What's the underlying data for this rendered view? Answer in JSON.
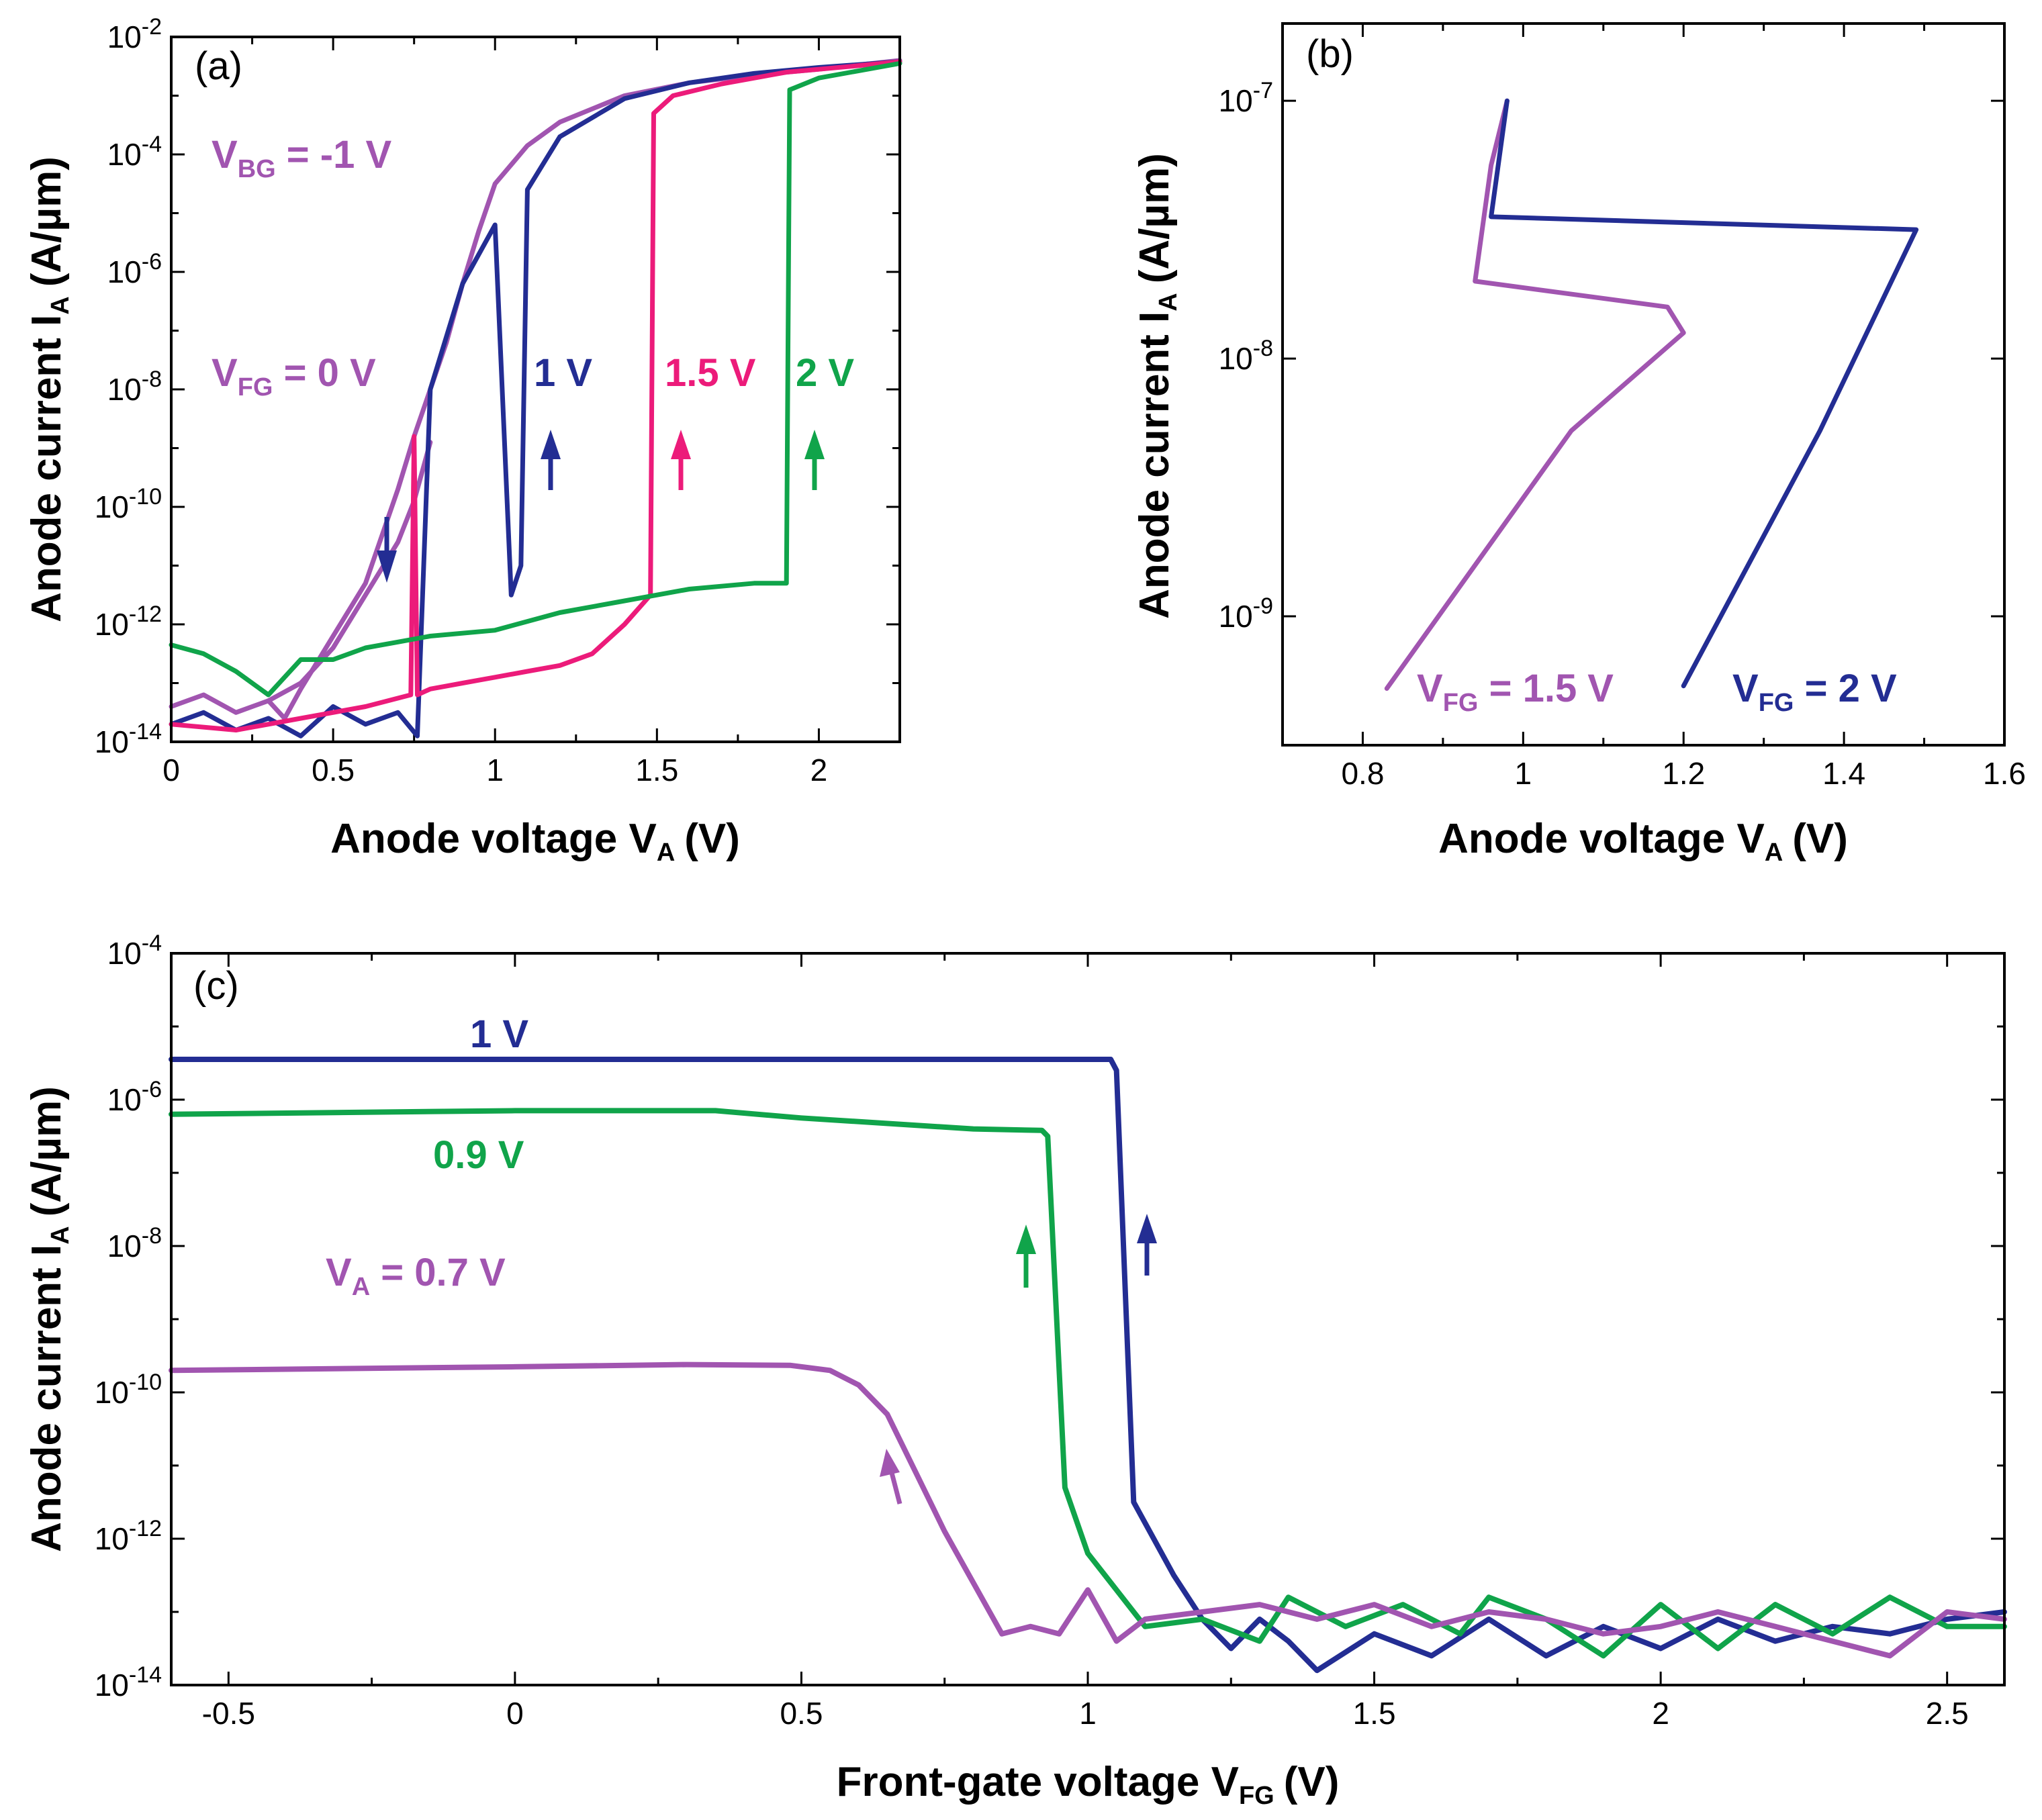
{
  "colors": {
    "purple": "#A155B0",
    "navy": "#232D93",
    "pink": "#EC1B7A",
    "green": "#10A44A"
  },
  "chart_data": [
    {
      "id": "a",
      "type": "line",
      "panel_label": "(a)",
      "xlabel": "Anode voltage V",
      "xlabel_sub": "A",
      "xlabel_unit": "(V)",
      "ylabel": "Anode current I",
      "ylabel_sub": "A",
      "ylabel_unit": "(A/µm)",
      "xlim": [
        0,
        2.25
      ],
      "ylim_log10": [
        -14,
        -2
      ],
      "yscale": "log",
      "xticks": [
        "0",
        "0.5",
        "1",
        "1.5",
        "2"
      ],
      "xtick_values": [
        0,
        0.5,
        1,
        1.5,
        2
      ],
      "ytick_exponents": [
        -14,
        -12,
        -10,
        -8,
        -6,
        -4,
        -2
      ],
      "ytick_base": "10",
      "ytick_labels": [
        "-14",
        "-12",
        "-10",
        "-8",
        "-6",
        "-4",
        "-2"
      ],
      "annotations": {
        "vbg_main": "V",
        "vbg_sub": "BG",
        "vbg_rest": " = -1 V",
        "vfg_main": "V",
        "vfg_sub": "FG",
        "vfg_rest": " = 0 V",
        "l1": "1 V",
        "l15": "1.5 V",
        "l2": "2 V"
      },
      "series": [
        {
          "name": "V_FG = 0 V (purple)",
          "color": "purple",
          "log10": true,
          "x": [
            0,
            0.1,
            0.2,
            0.3,
            0.35,
            0.4,
            0.5,
            0.6,
            0.7,
            0.75,
            0.8,
            0.85,
            0.9,
            0.95,
            1.0,
            1.1,
            1.2,
            1.4,
            1.6,
            1.8,
            2.0,
            2.25
          ],
          "y": [
            -13.4,
            -13.2,
            -13.5,
            -13.3,
            -13.6,
            -13.1,
            -12.2,
            -11.3,
            -9.7,
            -8.8,
            -8.0,
            -7.2,
            -6.2,
            -5.3,
            -4.5,
            -3.85,
            -3.45,
            -3.0,
            -2.78,
            -2.65,
            -2.55,
            -2.4
          ]
        },
        {
          "name": "V_FG = 0 V reverse (purple)",
          "color": "purple",
          "log10": true,
          "x": [
            0.3,
            0.4,
            0.5,
            0.6,
            0.7,
            0.75,
            0.8
          ],
          "y": [
            -13.3,
            -13.0,
            -12.4,
            -11.5,
            -10.6,
            -9.9,
            -8.9
          ]
        },
        {
          "name": "V_FG = 1 V (navy)",
          "color": "navy",
          "log10": true,
          "x": [
            0,
            0.1,
            0.2,
            0.3,
            0.4,
            0.5,
            0.6,
            0.7,
            0.76,
            0.8,
            0.9,
            1.0,
            1.05,
            1.08,
            1.1,
            1.2,
            1.4,
            1.6,
            1.8,
            2.0,
            2.25
          ],
          "y": [
            -13.7,
            -13.5,
            -13.8,
            -13.6,
            -13.9,
            -13.4,
            -13.7,
            -13.5,
            -13.9,
            -8.0,
            -6.2,
            -5.2,
            -11.5,
            -11.0,
            -4.6,
            -3.7,
            -3.05,
            -2.78,
            -2.62,
            -2.52,
            -2.42
          ]
        },
        {
          "name": "V_FG = 1.5 V (pink)",
          "color": "pink",
          "log10": true,
          "x": [
            0,
            0.2,
            0.4,
            0.6,
            0.74,
            0.75,
            0.76,
            0.8,
            0.9,
            1.0,
            1.1,
            1.2,
            1.3,
            1.4,
            1.48,
            1.49,
            1.55,
            1.7,
            1.9,
            2.1,
            2.25
          ],
          "y": [
            -13.7,
            -13.8,
            -13.6,
            -13.4,
            -13.2,
            -8.8,
            -13.2,
            -13.1,
            -13.0,
            -12.9,
            -12.8,
            -12.7,
            -12.5,
            -12.0,
            -11.5,
            -3.3,
            -3.0,
            -2.8,
            -2.6,
            -2.5,
            -2.42
          ]
        },
        {
          "name": "V_FG = 2 V (green)",
          "color": "green",
          "log10": true,
          "x": [
            0,
            0.1,
            0.2,
            0.3,
            0.4,
            0.5,
            0.6,
            0.7,
            0.8,
            1.0,
            1.2,
            1.4,
            1.6,
            1.8,
            1.9,
            1.91,
            2.0,
            2.25
          ],
          "y": [
            -12.35,
            -12.5,
            -12.8,
            -13.2,
            -12.6,
            -12.6,
            -12.4,
            -12.3,
            -12.2,
            -12.1,
            -11.8,
            -11.6,
            -11.4,
            -11.3,
            -11.3,
            -2.9,
            -2.7,
            -2.45
          ]
        }
      ]
    },
    {
      "id": "b",
      "type": "line",
      "panel_label": "(b)",
      "xlabel": "Anode voltage V",
      "xlabel_sub": "A",
      "xlabel_unit": "(V)",
      "ylabel": "Anode current I",
      "ylabel_sub": "A",
      "ylabel_unit": "(A/µm)",
      "xlim": [
        0.7,
        1.6
      ],
      "ylim_log10": [
        -9.5,
        -6.7
      ],
      "yscale": "log",
      "xticks": [
        "0.8",
        "1",
        "1.2",
        "1.4",
        "1.6"
      ],
      "xtick_values": [
        0.8,
        1.0,
        1.2,
        1.4,
        1.6
      ],
      "ytick_exponents": [
        -9,
        -8,
        -7
      ],
      "ytick_base": "10",
      "ytick_labels": [
        "-9",
        "-8",
        "-7"
      ],
      "annotations": {
        "p_main": "V",
        "p_sub": "FG",
        "p_rest": " = 1.5 V",
        "n_main": "V",
        "n_sub": "FG",
        "n_rest": " = 2 V"
      },
      "series": [
        {
          "name": "V_FG = 1.5 V",
          "color": "purple",
          "log10": true,
          "x": [
            0.83,
            1.06,
            1.2,
            1.18,
            0.94,
            0.96,
            0.98
          ],
          "y": [
            -9.28,
            -8.28,
            -7.9,
            -7.8,
            -7.7,
            -7.25,
            -7.0
          ]
        },
        {
          "name": "V_FG = 2 V",
          "color": "navy",
          "log10": true,
          "x": [
            1.2,
            1.37,
            1.49,
            0.96,
            0.98
          ],
          "y": [
            -9.27,
            -8.28,
            -7.5,
            -7.45,
            -7.0
          ]
        }
      ]
    },
    {
      "id": "c",
      "type": "line",
      "panel_label": "(c)",
      "xlabel": "Front-gate voltage V",
      "xlabel_sub": "FG",
      "xlabel_unit": "(V)",
      "ylabel": "Anode current I",
      "ylabel_sub": "A",
      "ylabel_unit": "(A/µm)",
      "xlim": [
        -0.6,
        2.6
      ],
      "ylim_log10": [
        -14,
        -4
      ],
      "yscale": "log",
      "xticks": [
        "-0.5",
        "0",
        "0.5",
        "1",
        "1.5",
        "2",
        "2.5"
      ],
      "xtick_values": [
        -0.5,
        0,
        0.5,
        1,
        1.5,
        2,
        2.5
      ],
      "ytick_exponents": [
        -14,
        -12,
        -10,
        -8,
        -6,
        -4
      ],
      "ytick_base": "10",
      "ytick_labels": [
        "-14",
        "-12",
        "-10",
        "-8",
        "-6",
        "-4"
      ],
      "annotations": {
        "l1": "1 V",
        "l09": "0.9 V",
        "va_main": "V",
        "va_sub": "A",
        "va_rest": " = 0.7 V"
      },
      "series": [
        {
          "name": "1 V",
          "color": "navy",
          "log10": true,
          "x": [
            -0.6,
            1.04,
            1.05,
            1.08,
            1.15,
            1.2,
            1.25,
            1.3,
            1.35,
            1.4,
            1.5,
            1.6,
            1.7,
            1.8,
            1.9,
            2.0,
            2.1,
            2.2,
            2.3,
            2.4,
            2.5,
            2.6
          ],
          "y": [
            -5.45,
            -5.45,
            -5.6,
            -11.5,
            -12.5,
            -13.1,
            -13.5,
            -13.1,
            -13.4,
            -13.8,
            -13.3,
            -13.6,
            -13.1,
            -13.6,
            -13.2,
            -13.5,
            -13.1,
            -13.4,
            -13.2,
            -13.3,
            -13.1,
            -13.0
          ]
        },
        {
          "name": "0.9 V",
          "color": "green",
          "log10": true,
          "x": [
            -0.6,
            0.0,
            0.35,
            0.5,
            0.8,
            0.92,
            0.93,
            0.96,
            1.0,
            1.05,
            1.1,
            1.2,
            1.3,
            1.35,
            1.45,
            1.55,
            1.65,
            1.7,
            1.8,
            1.9,
            2.0,
            2.1,
            2.2,
            2.3,
            2.4,
            2.5,
            2.6
          ],
          "y": [
            -6.2,
            -6.15,
            -6.15,
            -6.25,
            -6.4,
            -6.42,
            -6.5,
            -11.3,
            -12.2,
            -12.7,
            -13.2,
            -13.1,
            -13.4,
            -12.8,
            -13.2,
            -12.9,
            -13.3,
            -12.8,
            -13.1,
            -13.6,
            -12.9,
            -13.5,
            -12.9,
            -13.3,
            -12.8,
            -13.2,
            -13.2
          ]
        },
        {
          "name": "V_A = 0.7 V",
          "color": "purple",
          "log10": true,
          "x": [
            -0.6,
            0.0,
            0.3,
            0.48,
            0.55,
            0.6,
            0.65,
            0.7,
            0.75,
            0.8,
            0.85,
            0.9,
            0.95,
            1.0,
            1.05,
            1.1,
            1.2,
            1.3,
            1.4,
            1.5,
            1.6,
            1.7,
            1.8,
            1.9,
            2.0,
            2.1,
            2.2,
            2.3,
            2.4,
            2.5,
            2.6
          ],
          "y": [
            -9.7,
            -9.65,
            -9.62,
            -9.63,
            -9.7,
            -9.9,
            -10.3,
            -11.1,
            -11.9,
            -12.6,
            -13.3,
            -13.2,
            -13.3,
            -12.7,
            -13.4,
            -13.1,
            -13.0,
            -12.9,
            -13.1,
            -12.9,
            -13.2,
            -13.0,
            -13.1,
            -13.3,
            -13.2,
            -13.0,
            -13.2,
            -13.4,
            -13.6,
            -13.0,
            -13.1
          ]
        }
      ]
    }
  ]
}
